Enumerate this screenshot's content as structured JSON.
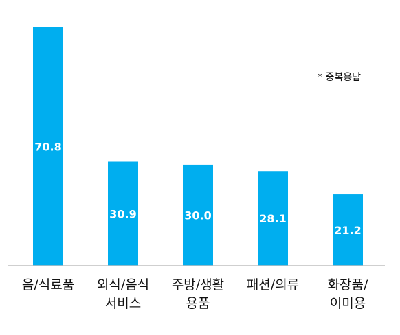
{
  "note": "* 중복응답",
  "chart_data": {
    "type": "bar",
    "title": "",
    "xlabel": "",
    "ylabel": "",
    "categories": [
      [
        "음/식료품"
      ],
      [
        "외식/음식",
        "서비스"
      ],
      [
        "주방/생활",
        "용품"
      ],
      [
        "패션/의류"
      ],
      [
        "화장품/",
        "이미용"
      ]
    ],
    "values": [
      70.8,
      30.9,
      30.0,
      28.1,
      21.2
    ],
    "value_labels": [
      "70.8",
      "30.9",
      "30.0",
      "28.1",
      "21.2"
    ],
    "ylim": [
      0,
      72
    ],
    "grid": false,
    "legend": "none",
    "colors": {
      "bar": "#00aeef",
      "value_label": "#ffffff",
      "axis": "#bfbfbf",
      "category_label": "#111111"
    }
  }
}
